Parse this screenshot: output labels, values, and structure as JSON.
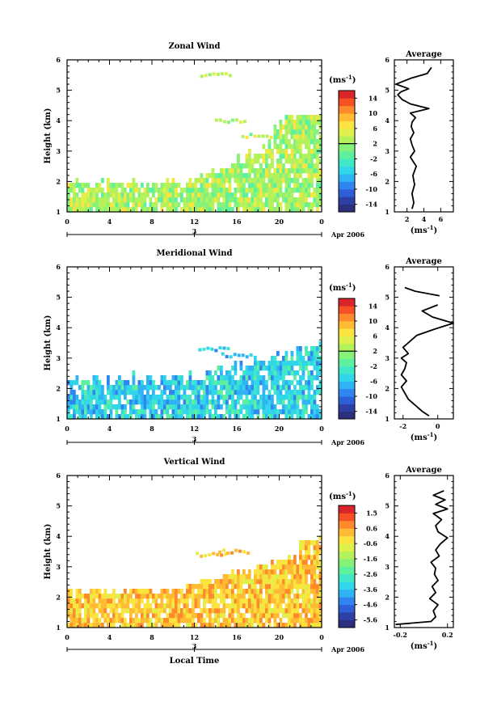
{
  "colorbar_colors": [
    "#2c2f7d",
    "#2e3fa6",
    "#2f5fd6",
    "#2f86f0",
    "#2fb3f5",
    "#31d7e9",
    "#40e8c7",
    "#5cf09f",
    "#85f27a",
    "#b3f25a",
    "#dff04a",
    "#fbe43f",
    "#ffbb33",
    "#ff8a2b",
    "#f65025",
    "#d8262a"
  ],
  "chart_data": [
    {
      "type": "heatmap",
      "title": "Zonal Wind",
      "ylabel": "Height (km)",
      "xlabel": "",
      "x_ticks": [
        "0",
        "4",
        "8",
        "12",
        "16",
        "20",
        "0"
      ],
      "y_ticks": [
        "1",
        "2",
        "3",
        "4",
        "5",
        "6"
      ],
      "ylim": [
        1,
        6
      ],
      "xlim": [
        0,
        24
      ],
      "date_marker": "3",
      "date_label": "Apr 2006",
      "unit_label": "(ms",
      "unit_sup": "-1",
      "unit_close": ")",
      "colorbar_ticks": [
        "14",
        "10",
        "6",
        "2",
        "-2",
        "-6",
        "-10",
        "-14"
      ],
      "colorbar_range": [
        -16,
        16
      ],
      "zero_level": 2,
      "shade": "zonal",
      "average": {
        "title": "Average",
        "xlabel": "(ms",
        "xlabel_sup": "-1",
        "xlabel_close": ")",
        "x_ticks": [
          "2",
          "4",
          "6"
        ],
        "xlim": [
          0.5,
          7.5
        ],
        "ylim": [
          1,
          6
        ],
        "y_ticks": [
          "1",
          "2",
          "3",
          "4",
          "5",
          "6"
        ],
        "segments": [
          {
            "h": [
              1.1,
              1.3,
              1.6,
              1.9,
              2.2,
              2.5,
              2.8,
              3.0,
              3.2,
              3.4,
              3.6,
              3.8,
              3.95,
              4.1,
              4.25,
              4.4,
              4.55,
              4.7,
              4.85,
              4.95,
              5.05,
              5.2,
              5.4,
              5.55,
              5.75
            ],
            "v": [
              2.6,
              2.8,
              2.6,
              2.9,
              2.7,
              3.1,
              2.4,
              2.9,
              2.6,
              2.4,
              2.8,
              2.5,
              2.6,
              3.0,
              2.4,
              4.6,
              2.4,
              1.4,
              0.9,
              1.3,
              2.2,
              0.7,
              2.5,
              4.4,
              4.9
            ]
          }
        ]
      }
    },
    {
      "type": "heatmap",
      "title": "Meridional Wind",
      "ylabel": "Height (km)",
      "xlabel": "",
      "x_ticks": [
        "0",
        "4",
        "8",
        "12",
        "16",
        "20",
        "0"
      ],
      "y_ticks": [
        "1",
        "2",
        "3",
        "4",
        "5",
        "6"
      ],
      "ylim": [
        1,
        6
      ],
      "xlim": [
        0,
        24
      ],
      "date_marker": "3",
      "date_label": "Apr 2006",
      "unit_label": "(ms",
      "unit_sup": "-1",
      "unit_close": ")",
      "colorbar_ticks": [
        "14",
        "10",
        "6",
        "2",
        "-2",
        "-6",
        "-10",
        "-14"
      ],
      "colorbar_range": [
        -16,
        16
      ],
      "zero_level": 2,
      "shade": "meridional",
      "average": {
        "title": "Average",
        "xlabel": "(ms",
        "xlabel_sup": "-1",
        "xlabel_close": ")",
        "x_ticks": [
          "-2",
          "0"
        ],
        "xlim": [
          -2.5,
          0.9
        ],
        "ylim": [
          1,
          6
        ],
        "y_ticks": [
          "1",
          "2",
          "3",
          "4",
          "5",
          "6"
        ],
        "segments": [
          {
            "h": [
              1.1,
              1.25,
              1.45,
              1.65,
              1.85,
              2.05,
              2.25,
              2.45,
              2.65,
              2.85,
              3.0,
              3.15,
              3.35,
              3.55,
              3.75,
              3.95,
              4.15,
              4.35,
              4.55,
              4.75
            ],
            "v": [
              -0.5,
              -0.9,
              -1.3,
              -1.7,
              -1.9,
              -2.1,
              -1.8,
              -2.1,
              -1.9,
              -1.8,
              -2.1,
              -1.7,
              -2.0,
              -1.6,
              -1.2,
              -0.2,
              0.9,
              -0.3,
              -0.9,
              0.0
            ]
          },
          {
            "h": [
              5.05,
              5.2,
              5.32
            ],
            "v": [
              0.1,
              -1.3,
              -1.9
            ]
          }
        ]
      }
    },
    {
      "type": "heatmap",
      "title": "Vertical Wind",
      "ylabel": "Height (km)",
      "xlabel": "Local Time",
      "x_ticks": [
        "0",
        "4",
        "8",
        "12",
        "16",
        "20",
        "0"
      ],
      "y_ticks": [
        "1",
        "2",
        "3",
        "4",
        "5",
        "6"
      ],
      "ylim": [
        1,
        6
      ],
      "xlim": [
        0,
        24
      ],
      "date_marker": "3",
      "date_label": "Apr 2006",
      "unit_label": "(ms",
      "unit_sup": "-1",
      "unit_close": ")",
      "colorbar_ticks": [
        "1.5",
        "0.6",
        "-0.6",
        "-1.6",
        "-2.6",
        "-3.6",
        "-4.6",
        "-5.6"
      ],
      "colorbar_range": [
        -6.1,
        2.0
      ],
      "zero_level": null,
      "shade": "vertical",
      "average": {
        "title": "Average",
        "xlabel": "(ms",
        "xlabel_sup": "-1",
        "xlabel_close": ")",
        "x_ticks": [
          "-0.2",
          "0.2"
        ],
        "xlim": [
          -0.25,
          0.25
        ],
        "ylim": [
          1,
          6
        ],
        "y_ticks": [
          "1",
          "2",
          "3",
          "4",
          "5",
          "6"
        ],
        "segments": [
          {
            "h": [
              1.1,
              1.2,
              1.35,
              1.55,
              1.75,
              1.95,
              2.15,
              2.35,
              2.55,
              2.75,
              2.95,
              3.15,
              3.35,
              3.55,
              3.75,
              3.95,
              4.15,
              4.35,
              4.55,
              4.75,
              4.9,
              5.05,
              5.2,
              5.35,
              5.5
            ],
            "v": [
              -0.24,
              0.06,
              0.1,
              0.08,
              0.12,
              0.05,
              0.1,
              0.07,
              0.12,
              0.09,
              0.1,
              0.06,
              0.13,
              0.1,
              0.14,
              0.2,
              0.12,
              0.1,
              0.15,
              0.08,
              0.2,
              0.1,
              0.18,
              0.08,
              0.17
            ]
          }
        ]
      }
    }
  ]
}
